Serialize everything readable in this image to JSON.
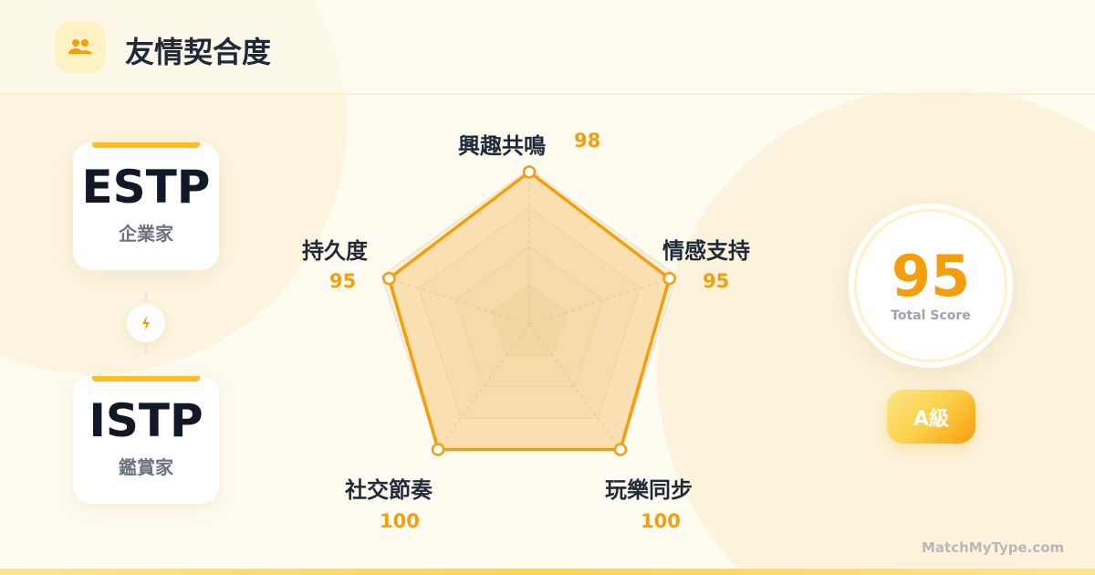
{
  "header": {
    "title": "友情契合度",
    "icon": "users-icon"
  },
  "person_a": {
    "type": "ESTP",
    "nickname": "企業家"
  },
  "person_b": {
    "type": "ISTP",
    "nickname": "鑑賞家"
  },
  "connector_icon": "lightning-icon",
  "colors": {
    "accent": "#f59e0b",
    "fill": "#fcd9a0",
    "title": "#1f2937"
  },
  "chart_data": {
    "type": "radar",
    "categories": [
      "興趣共鳴",
      "情感支持",
      "玩樂同步",
      "社交節奏",
      "持久度"
    ],
    "values": [
      98,
      95,
      100,
      100,
      95
    ],
    "value_labels": [
      "98",
      "95",
      "100",
      "100",
      "95"
    ],
    "rmax": 100,
    "grid_levels": [
      25,
      50,
      75,
      100
    ]
  },
  "score": {
    "value": "95",
    "caption": "Total Score"
  },
  "grade": "A級",
  "footer": "MatchMyType.com"
}
